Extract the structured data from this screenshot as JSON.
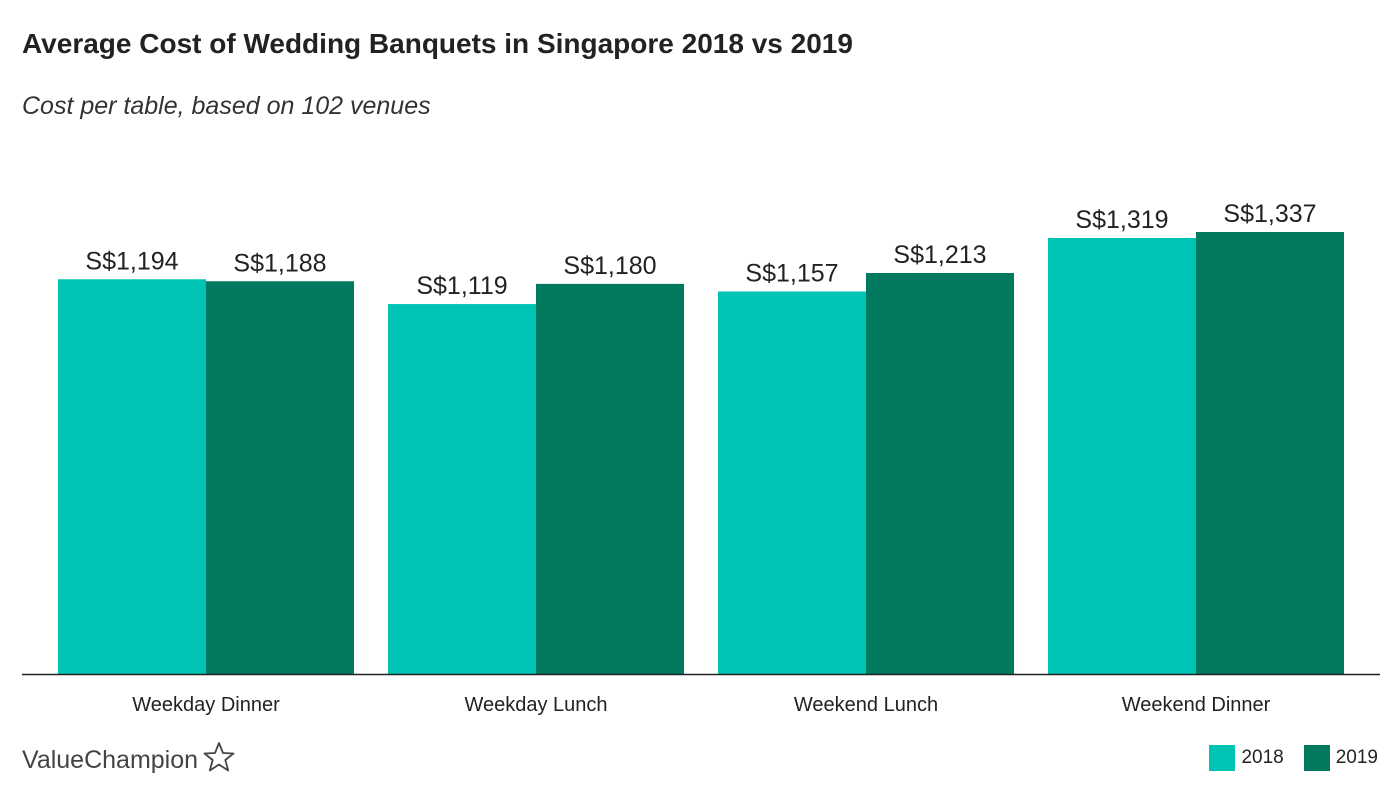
{
  "chart_data": {
    "type": "bar",
    "title": "Average Cost of Wedding Banquets in Singapore 2018 vs 2019",
    "subtitle": "Cost per table, based on 102 venues",
    "categories": [
      "Weekday Dinner",
      "Weekday Lunch",
      "Weekend Lunch",
      "Weekend Dinner"
    ],
    "series": [
      {
        "name": "2018",
        "color": "#00c4b3",
        "values": [
          1194,
          1119,
          1157,
          1319
        ],
        "labels": [
          "S$1,194",
          "S$1,119",
          "S$1,157",
          "S$1,319"
        ]
      },
      {
        "name": "2019",
        "color": "#00795f",
        "values": [
          1188,
          1180,
          1213,
          1337
        ],
        "labels": [
          "S$1,188",
          "S$1,180",
          "S$1,213",
          "S$1,337"
        ]
      }
    ],
    "ylim": [
      0,
      1337
    ],
    "grid": false,
    "legend": "bottom-right",
    "xlabel": "",
    "ylabel": ""
  },
  "branding": {
    "logo_text": "ValueChampion"
  },
  "colors": {
    "axis": "#222222",
    "text": "#222222"
  }
}
